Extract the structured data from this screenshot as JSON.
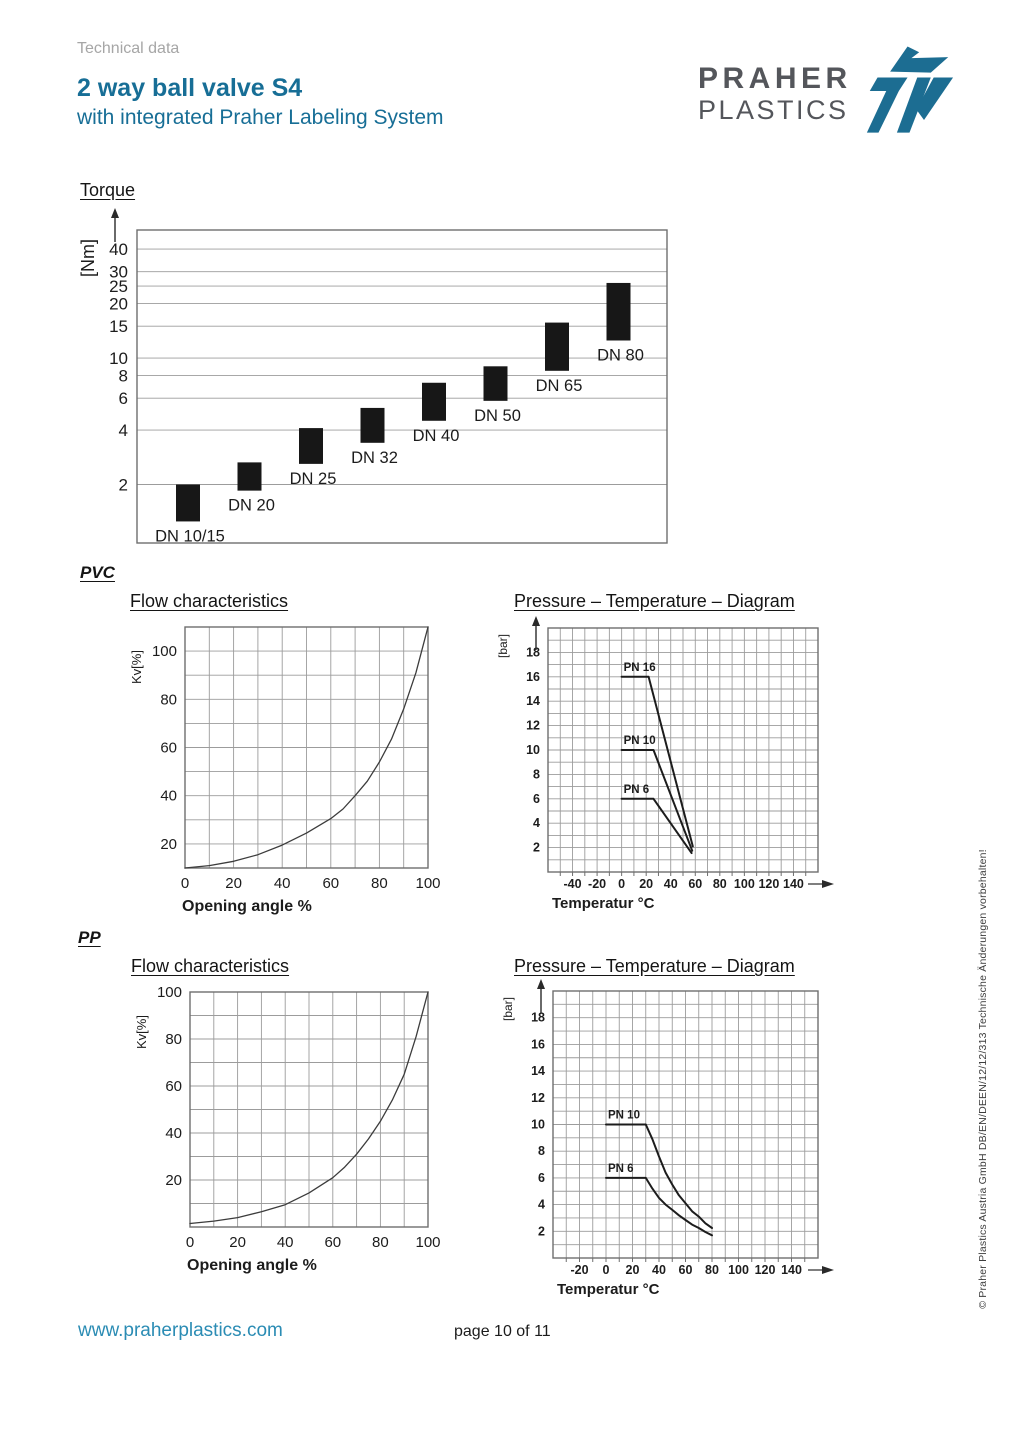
{
  "page": {
    "eyebrow": "Technical data",
    "title": "2 way ball valve S4",
    "subtitle": "with integrated Praher Labeling System",
    "logo": {
      "line1": "PRAHER",
      "line2": "PLASTICS"
    },
    "footer": {
      "website": "www.praherplastics.com",
      "page_indicator": "page 10 of 11"
    },
    "side_note": "© Praher Plastics Austria GmbH DB/EN/DEEN/12/12/313 Technische Änderungen vorbehalten!"
  },
  "sections": {
    "torque_heading": "Torque",
    "pvc_heading": "PVC",
    "pp_heading": "PP",
    "flow_title": "Flow characteristics",
    "pt_title": "Pressure – Temperature – Diagram"
  },
  "colors": {
    "brand_blue": "#176E96",
    "link_blue": "#2B8CB4",
    "muted_gray": "#A6A6A6",
    "logo_gray": "#54565B",
    "icon_blue": "#1C6D92",
    "text": "#1C1C1C",
    "grid": "#9C9C9C",
    "frame": "#6E6E6E",
    "flow_curve": "#3C3C3C",
    "pt_curve": "#1C1C1C",
    "bar_fill": "#171717"
  },
  "chart_data": [
    {
      "id": "torque",
      "type": "bar",
      "subtype": "floating-range",
      "title": "Torque",
      "ylabel": "[Nm]",
      "y_scale": "log",
      "ylim": [
        0.95,
        51
      ],
      "y_ticks": [
        2,
        4,
        6,
        8,
        10,
        15,
        20,
        25,
        30,
        40
      ],
      "grid": true,
      "categories": [
        "DN 10/15",
        "DN 20",
        "DN 25",
        "DN 32",
        "DN 40",
        "DN 50",
        "DN 65",
        "DN 80"
      ],
      "ranges": [
        [
          1.25,
          2.0
        ],
        [
          1.85,
          2.65
        ],
        [
          2.6,
          4.1
        ],
        [
          3.4,
          5.3
        ],
        [
          4.5,
          7.3
        ],
        [
          5.8,
          9.0
        ],
        [
          8.5,
          15.7
        ],
        [
          12.5,
          26
        ]
      ]
    },
    {
      "id": "pvc_flow",
      "type": "line",
      "material": "PVC",
      "title": "Flow characteristics",
      "xlabel": "Opening angle %",
      "ylabel": "Kv[%]",
      "xlim": [
        0,
        100
      ],
      "ylim": [
        10,
        110
      ],
      "x_ticks": [
        0,
        20,
        40,
        60,
        80,
        100
      ],
      "y_ticks": [
        20,
        40,
        60,
        80,
        100
      ],
      "grid_step_x": 10,
      "grid_step_y": 10,
      "points": [
        [
          0,
          10
        ],
        [
          10,
          11
        ],
        [
          20,
          12.8
        ],
        [
          30,
          15.5
        ],
        [
          40,
          19.5
        ],
        [
          50,
          24.5
        ],
        [
          60,
          30.5
        ],
        [
          65,
          34.5
        ],
        [
          70,
          40
        ],
        [
          75,
          46
        ],
        [
          80,
          54
        ],
        [
          85,
          63.5
        ],
        [
          90,
          76
        ],
        [
          95,
          91
        ],
        [
          100,
          110
        ]
      ]
    },
    {
      "id": "pvc_pt",
      "type": "line",
      "material": "PVC",
      "title": "Pressure – Temperature – Diagram",
      "xlabel": "Temperatur °C",
      "ylabel": "[bar]",
      "xlim": [
        -60,
        160
      ],
      "ylim": [
        0,
        20
      ],
      "x_ticks": [
        -40,
        -20,
        0,
        20,
        40,
        60,
        80,
        100,
        120,
        140
      ],
      "y_ticks": [
        2,
        4,
        6,
        8,
        10,
        12,
        14,
        16,
        18
      ],
      "grid_step_x": 10,
      "grid_step_y": 1,
      "series": [
        {
          "name": "PN 16",
          "points": [
            [
              0,
              16
            ],
            [
              22,
              16
            ],
            [
              58,
              2.1
            ]
          ]
        },
        {
          "name": "PN 10",
          "points": [
            [
              0,
              10
            ],
            [
              26,
              10
            ],
            [
              57.5,
              1.75
            ]
          ]
        },
        {
          "name": "PN 6",
          "points": [
            [
              0,
              6
            ],
            [
              26,
              6
            ],
            [
              57,
              1.55
            ]
          ]
        }
      ]
    },
    {
      "id": "pp_flow",
      "type": "line",
      "material": "PP",
      "title": "Flow characteristics",
      "xlabel": "Opening angle %",
      "ylabel": "Kv[%]",
      "xlim": [
        0,
        100
      ],
      "ylim": [
        0,
        100
      ],
      "x_ticks": [
        0,
        20,
        40,
        60,
        80,
        100
      ],
      "y_ticks": [
        20,
        40,
        60,
        80,
        100
      ],
      "grid_step_x": 10,
      "grid_step_y": 10,
      "points": [
        [
          0,
          1.5
        ],
        [
          10,
          2.5
        ],
        [
          20,
          4
        ],
        [
          30,
          6.5
        ],
        [
          40,
          9.5
        ],
        [
          50,
          14.5
        ],
        [
          60,
          21
        ],
        [
          65,
          25.5
        ],
        [
          70,
          31
        ],
        [
          75,
          37.5
        ],
        [
          80,
          45
        ],
        [
          85,
          54
        ],
        [
          90,
          65
        ],
        [
          95,
          81
        ],
        [
          100,
          100
        ]
      ]
    },
    {
      "id": "pp_pt",
      "type": "line",
      "material": "PP",
      "title": "Pressure – Temperature – Diagram",
      "xlabel": "Temperatur °C",
      "ylabel": "[bar]",
      "xlim": [
        -40,
        160
      ],
      "ylim": [
        0,
        20
      ],
      "x_ticks": [
        -20,
        0,
        20,
        40,
        60,
        80,
        100,
        120,
        140
      ],
      "y_ticks": [
        2,
        4,
        6,
        8,
        10,
        12,
        14,
        16,
        18
      ],
      "grid_step_x": 10,
      "grid_step_y": 1,
      "series": [
        {
          "name": "PN 10",
          "points": [
            [
              0,
              10
            ],
            [
              30,
              10
            ],
            [
              35,
              8.9
            ],
            [
              40,
              7.6
            ],
            [
              45,
              6.4
            ],
            [
              50,
              5.5
            ],
            [
              55,
              4.7
            ],
            [
              60,
              4.1
            ],
            [
              65,
              3.5
            ],
            [
              70,
              3.1
            ],
            [
              75,
              2.6
            ],
            [
              80,
              2.25
            ]
          ]
        },
        {
          "name": "PN 6",
          "points": [
            [
              0,
              6
            ],
            [
              30,
              6
            ],
            [
              35,
              5.2
            ],
            [
              40,
              4.5
            ],
            [
              45,
              4.0
            ],
            [
              50,
              3.6
            ],
            [
              55,
              3.2
            ],
            [
              60,
              2.85
            ],
            [
              65,
              2.5
            ],
            [
              70,
              2.25
            ],
            [
              75,
              1.95
            ],
            [
              80,
              1.7
            ]
          ]
        }
      ]
    }
  ]
}
